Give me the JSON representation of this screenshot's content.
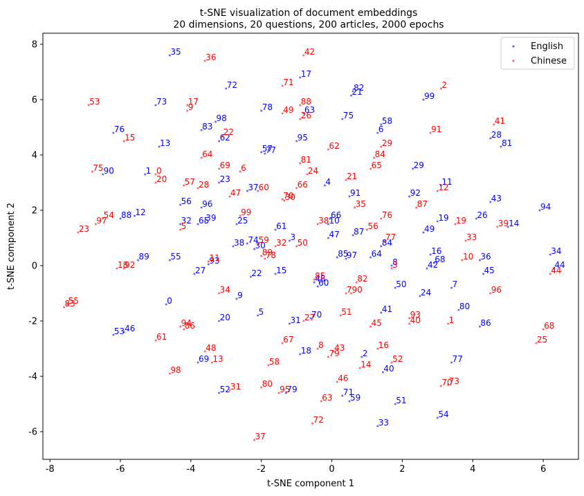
{
  "chart_data": {
    "type": "scatter",
    "title": "t-SNE visualization of document embeddings",
    "subtitle": "20 dimensions, 20 questions, 200 articles, 2000 epochs",
    "xlabel": "t-SNE component 1",
    "ylabel": "t-SNE component 2",
    "xlim": [
      -8.2,
      7.0
    ],
    "ylim": [
      -7.0,
      8.4
    ],
    "xticks": [
      -8,
      -6,
      -4,
      -2,
      0,
      2,
      4,
      6
    ],
    "yticks": [
      -6,
      -4,
      -2,
      0,
      2,
      4,
      6,
      8
    ],
    "grid": false,
    "legend_position": "top-right",
    "series": [
      {
        "name": "English",
        "color": "#0000ff",
        "points": [
          {
            "label": "35",
            "x": -4.6,
            "y": 7.6
          },
          {
            "label": "72",
            "x": -3.0,
            "y": 6.4
          },
          {
            "label": "17",
            "x": -0.9,
            "y": 6.8
          },
          {
            "label": "82",
            "x": 0.6,
            "y": 6.3
          },
          {
            "label": "21",
            "x": 0.55,
            "y": 6.15
          },
          {
            "label": "99",
            "x": 2.6,
            "y": 6.0
          },
          {
            "label": "73",
            "x": -5.0,
            "y": 5.8
          },
          {
            "label": "78",
            "x": -2.0,
            "y": 5.6
          },
          {
            "label": "63",
            "x": -0.8,
            "y": 5.5
          },
          {
            "label": "75",
            "x": 0.3,
            "y": 5.3
          },
          {
            "label": "58",
            "x": 1.4,
            "y": 5.1
          },
          {
            "label": "6",
            "x": 1.3,
            "y": 4.8
          },
          {
            "label": "98",
            "x": -3.3,
            "y": 5.2
          },
          {
            "label": "83",
            "x": -3.7,
            "y": 4.9
          },
          {
            "label": "76",
            "x": -6.2,
            "y": 4.8
          },
          {
            "label": "62",
            "x": -3.2,
            "y": 4.5
          },
          {
            "label": "95",
            "x": -1.0,
            "y": 4.5
          },
          {
            "label": "28",
            "x": 4.5,
            "y": 4.6
          },
          {
            "label": "81",
            "x": 4.8,
            "y": 4.3
          },
          {
            "label": "13",
            "x": -4.9,
            "y": 4.3
          },
          {
            "label": "57",
            "x": -2.0,
            "y": 4.1
          },
          {
            "label": "77",
            "x": -1.9,
            "y": 4.05
          },
          {
            "label": "29",
            "x": 2.3,
            "y": 3.5
          },
          {
            "label": "1",
            "x": -5.3,
            "y": 3.3
          },
          {
            "label": "90",
            "x": -6.5,
            "y": 3.3
          },
          {
            "label": "23",
            "x": -3.2,
            "y": 3.0
          },
          {
            "label": "37",
            "x": -2.4,
            "y": 2.7
          },
          {
            "label": "4",
            "x": -0.2,
            "y": 2.9
          },
          {
            "label": "91",
            "x": 0.5,
            "y": 2.5
          },
          {
            "label": "92",
            "x": 2.2,
            "y": 2.5
          },
          {
            "label": "11",
            "x": 3.1,
            "y": 2.9
          },
          {
            "label": "43",
            "x": 4.5,
            "y": 2.3
          },
          {
            "label": "94",
            "x": 5.9,
            "y": 2.0
          },
          {
            "label": "56",
            "x": -4.3,
            "y": 2.2
          },
          {
            "label": "96",
            "x": -3.7,
            "y": 2.1
          },
          {
            "label": "88",
            "x": -6.0,
            "y": 1.7
          },
          {
            "label": "12",
            "x": -5.6,
            "y": 1.8
          },
          {
            "label": "39",
            "x": -3.6,
            "y": 1.6
          },
          {
            "label": "32",
            "x": -4.3,
            "y": 1.5
          },
          {
            "label": "65",
            "x": -3.8,
            "y": 1.5
          },
          {
            "label": "25",
            "x": -2.7,
            "y": 1.5
          },
          {
            "label": "66",
            "x": -0.05,
            "y": 1.7
          },
          {
            "label": "10",
            "x": -0.1,
            "y": 1.5
          },
          {
            "label": "26",
            "x": 4.1,
            "y": 1.7
          },
          {
            "label": "19",
            "x": 3.0,
            "y": 1.6
          },
          {
            "label": "14",
            "x": 5.0,
            "y": 1.4
          },
          {
            "label": "61",
            "x": -1.6,
            "y": 1.3
          },
          {
            "label": "49",
            "x": 2.6,
            "y": 1.2
          },
          {
            "label": "87",
            "x": 0.6,
            "y": 1.1
          },
          {
            "label": "47",
            "x": -0.1,
            "y": 1.0
          },
          {
            "label": "3",
            "x": -1.2,
            "y": 0.9
          },
          {
            "label": "74",
            "x": -2.4,
            "y": 0.8
          },
          {
            "label": "38",
            "x": -2.8,
            "y": 0.7
          },
          {
            "label": "30",
            "x": -2.2,
            "y": 0.6
          },
          {
            "label": "84",
            "x": 1.4,
            "y": 0.7
          },
          {
            "label": "16",
            "x": 2.8,
            "y": 0.4
          },
          {
            "label": "34",
            "x": 6.2,
            "y": 0.4
          },
          {
            "label": "36",
            "x": 4.2,
            "y": 0.2
          },
          {
            "label": "68",
            "x": 2.9,
            "y": 0.1
          },
          {
            "label": "85",
            "x": 0.15,
            "y": 0.3
          },
          {
            "label": "97",
            "x": 0.4,
            "y": 0.25
          },
          {
            "label": "64",
            "x": 1.1,
            "y": 0.3
          },
          {
            "label": "89",
            "x": -5.5,
            "y": 0.2
          },
          {
            "label": "55",
            "x": -4.6,
            "y": 0.2
          },
          {
            "label": "93",
            "x": -3.5,
            "y": 0.05
          },
          {
            "label": "8",
            "x": 1.7,
            "y": 0.0
          },
          {
            "label": "42",
            "x": 2.7,
            "y": -0.1
          },
          {
            "label": "44",
            "x": 6.3,
            "y": -0.1
          },
          {
            "label": "45",
            "x": 4.3,
            "y": -0.3
          },
          {
            "label": "27",
            "x": -3.9,
            "y": -0.3
          },
          {
            "label": "15",
            "x": -1.6,
            "y": -0.3
          },
          {
            "label": "22",
            "x": -2.3,
            "y": -0.4
          },
          {
            "label": "48",
            "x": -0.5,
            "y": -0.6
          },
          {
            "label": "60",
            "x": -0.4,
            "y": -0.75
          },
          {
            "label": "50",
            "x": 1.8,
            "y": -0.8
          },
          {
            "label": "7",
            "x": 3.4,
            "y": -0.8
          },
          {
            "label": "24",
            "x": 2.5,
            "y": -1.1
          },
          {
            "label": "9",
            "x": -2.7,
            "y": -1.2
          },
          {
            "label": "0",
            "x": -4.7,
            "y": -1.4
          },
          {
            "label": "41",
            "x": 1.4,
            "y": -1.7
          },
          {
            "label": "80",
            "x": 3.6,
            "y": -1.6
          },
          {
            "label": "5",
            "x": -2.1,
            "y": -1.8
          },
          {
            "label": "70",
            "x": -0.6,
            "y": -1.9
          },
          {
            "label": "20",
            "x": -3.2,
            "y": -2.0
          },
          {
            "label": "31",
            "x": -1.2,
            "y": -2.1
          },
          {
            "label": "86",
            "x": 4.2,
            "y": -2.2
          },
          {
            "label": "46",
            "x": -5.9,
            "y": -2.4
          },
          {
            "label": "53",
            "x": -6.2,
            "y": -2.5
          },
          {
            "label": "18",
            "x": -0.9,
            "y": -3.2
          },
          {
            "label": "2",
            "x": 0.85,
            "y": -3.3
          },
          {
            "label": "77",
            "x": 3.4,
            "y": -3.5
          },
          {
            "label": "69",
            "x": -3.8,
            "y": -3.5
          },
          {
            "label": "40",
            "x": 1.45,
            "y": -3.85
          },
          {
            "label": "52",
            "x": -3.2,
            "y": -4.6
          },
          {
            "label": "79",
            "x": -1.3,
            "y": -4.6
          },
          {
            "label": "71",
            "x": 0.3,
            "y": -4.7
          },
          {
            "label": "59",
            "x": 0.5,
            "y": -4.9
          },
          {
            "label": "51",
            "x": 1.8,
            "y": -5.0
          },
          {
            "label": "54",
            "x": 3.0,
            "y": -5.5
          },
          {
            "label": "33",
            "x": 1.3,
            "y": -5.8
          }
        ]
      },
      {
        "name": "Chinese",
        "color": "#ff0000",
        "points": [
          {
            "label": "42",
            "x": -0.8,
            "y": 7.6
          },
          {
            "label": "36",
            "x": -3.6,
            "y": 7.4
          },
          {
            "label": "71",
            "x": -1.4,
            "y": 6.5
          },
          {
            "label": "2",
            "x": 3.1,
            "y": 6.4
          },
          {
            "label": "53",
            "x": -6.9,
            "y": 5.8
          },
          {
            "label": "17",
            "x": -4.1,
            "y": 5.8
          },
          {
            "label": "9",
            "x": -4.1,
            "y": 5.6
          },
          {
            "label": "88",
            "x": -0.9,
            "y": 5.8
          },
          {
            "label": "49",
            "x": -1.4,
            "y": 5.5
          },
          {
            "label": "26",
            "x": -0.9,
            "y": 5.3
          },
          {
            "label": "41",
            "x": 4.6,
            "y": 5.1
          },
          {
            "label": "91",
            "x": 2.8,
            "y": 4.8
          },
          {
            "label": "15",
            "x": -5.9,
            "y": 4.5
          },
          {
            "label": "22",
            "x": -3.1,
            "y": 4.7
          },
          {
            "label": "29",
            "x": 1.4,
            "y": 4.3
          },
          {
            "label": "62",
            "x": -0.1,
            "y": 4.2
          },
          {
            "label": "64",
            "x": -3.7,
            "y": 3.9
          },
          {
            "label": "84",
            "x": 1.2,
            "y": 3.9
          },
          {
            "label": "81",
            "x": -0.9,
            "y": 3.7
          },
          {
            "label": "65",
            "x": 1.1,
            "y": 3.5
          },
          {
            "label": "69",
            "x": -3.2,
            "y": 3.5
          },
          {
            "label": "24",
            "x": -0.7,
            "y": 3.3
          },
          {
            "label": "6",
            "x": -2.6,
            "y": 3.4
          },
          {
            "label": "75",
            "x": -6.8,
            "y": 3.4
          },
          {
            "label": "0",
            "x": -5.0,
            "y": 3.3
          },
          {
            "label": "21",
            "x": 0.4,
            "y": 3.1
          },
          {
            "label": "20",
            "x": -5.0,
            "y": 3.0
          },
          {
            "label": "57",
            "x": -4.2,
            "y": 2.9
          },
          {
            "label": "28",
            "x": -3.8,
            "y": 2.8
          },
          {
            "label": "66",
            "x": -1.0,
            "y": 2.8
          },
          {
            "label": "47",
            "x": -2.9,
            "y": 2.5
          },
          {
            "label": "60",
            "x": -2.1,
            "y": 2.7
          },
          {
            "label": "12",
            "x": 3.0,
            "y": 2.7
          },
          {
            "label": "70",
            "x": -1.4,
            "y": 2.4
          },
          {
            "label": "30",
            "x": -1.35,
            "y": 2.35
          },
          {
            "label": "35",
            "x": 0.65,
            "y": 2.1
          },
          {
            "label": "87",
            "x": 2.4,
            "y": 2.1
          },
          {
            "label": "99",
            "x": -2.6,
            "y": 1.8
          },
          {
            "label": "76",
            "x": 1.4,
            "y": 1.7
          },
          {
            "label": "54",
            "x": -6.5,
            "y": 1.7
          },
          {
            "label": "97",
            "x": -6.7,
            "y": 1.5
          },
          {
            "label": "38",
            "x": -0.4,
            "y": 1.5
          },
          {
            "label": "19",
            "x": 3.5,
            "y": 1.5
          },
          {
            "label": "39",
            "x": 4.7,
            "y": 1.4
          },
          {
            "label": "56",
            "x": 1.0,
            "y": 1.3
          },
          {
            "label": "5",
            "x": -4.3,
            "y": 1.3
          },
          {
            "label": "23",
            "x": -7.2,
            "y": 1.2
          },
          {
            "label": "33",
            "x": 3.8,
            "y": 0.9
          },
          {
            "label": "77",
            "x": 1.5,
            "y": 0.9
          },
          {
            "label": "59",
            "x": -2.1,
            "y": 0.8
          },
          {
            "label": "32",
            "x": -1.6,
            "y": 0.7
          },
          {
            "label": "50",
            "x": -1.0,
            "y": 0.7
          },
          {
            "label": "89",
            "x": -2.0,
            "y": 0.35
          },
          {
            "label": "78",
            "x": -1.9,
            "y": 0.25
          },
          {
            "label": "10",
            "x": 3.7,
            "y": 0.2
          },
          {
            "label": "11",
            "x": -3.5,
            "y": 0.15
          },
          {
            "label": "18",
            "x": -6.1,
            "y": -0.1
          },
          {
            "label": "92",
            "x": -5.9,
            "y": -0.1
          },
          {
            "label": "3",
            "x": 1.7,
            "y": -0.1
          },
          {
            "label": "44",
            "x": 6.2,
            "y": -0.3
          },
          {
            "label": "85",
            "x": -0.5,
            "y": -0.5
          },
          {
            "label": "82",
            "x": 0.7,
            "y": -0.6
          },
          {
            "label": "34",
            "x": -3.2,
            "y": -1.0
          },
          {
            "label": "7",
            "x": 0.4,
            "y": -1.0
          },
          {
            "label": "90",
            "x": 0.55,
            "y": -1.0
          },
          {
            "label": "96",
            "x": 4.5,
            "y": -1.0
          },
          {
            "label": "55",
            "x": -7.5,
            "y": -1.4
          },
          {
            "label": "83",
            "x": -7.6,
            "y": -1.5
          },
          {
            "label": "51",
            "x": 0.25,
            "y": -1.8
          },
          {
            "label": "93",
            "x": 2.2,
            "y": -1.9
          },
          {
            "label": "27",
            "x": -0.8,
            "y": -2.0
          },
          {
            "label": "40",
            "x": 2.2,
            "y": -2.1
          },
          {
            "label": "1",
            "x": 3.3,
            "y": -2.1
          },
          {
            "label": "45",
            "x": 1.1,
            "y": -2.2
          },
          {
            "label": "94",
            "x": -4.3,
            "y": -2.2
          },
          {
            "label": "86",
            "x": -4.2,
            "y": -2.3
          },
          {
            "label": "68",
            "x": 6.0,
            "y": -2.3
          },
          {
            "label": "61",
            "x": -5.0,
            "y": -2.7
          },
          {
            "label": "67",
            "x": -1.4,
            "y": -2.8
          },
          {
            "label": "25",
            "x": 5.8,
            "y": -2.8
          },
          {
            "label": "8",
            "x": -0.4,
            "y": -3.0
          },
          {
            "label": "16",
            "x": 1.3,
            "y": -3.0
          },
          {
            "label": "43",
            "x": 0.05,
            "y": -3.1
          },
          {
            "label": "48",
            "x": -3.6,
            "y": -3.1
          },
          {
            "label": "79",
            "x": -0.1,
            "y": -3.3
          },
          {
            "label": "13",
            "x": -3.4,
            "y": -3.5
          },
          {
            "label": "52",
            "x": 1.7,
            "y": -3.5
          },
          {
            "label": "58",
            "x": -1.8,
            "y": -3.6
          },
          {
            "label": "14",
            "x": 0.8,
            "y": -3.7
          },
          {
            "label": "98",
            "x": -4.6,
            "y": -3.9
          },
          {
            "label": "46",
            "x": 0.15,
            "y": -4.2
          },
          {
            "label": "73",
            "x": 3.3,
            "y": -4.3
          },
          {
            "label": "70",
            "x": 3.1,
            "y": -4.35
          },
          {
            "label": "31",
            "x": -2.9,
            "y": -4.5
          },
          {
            "label": "80",
            "x": -2.0,
            "y": -4.4
          },
          {
            "label": "95",
            "x": -1.5,
            "y": -4.6
          },
          {
            "label": "63",
            "x": -0.3,
            "y": -4.9
          },
          {
            "label": "72",
            "x": -0.55,
            "y": -5.7
          },
          {
            "label": "37",
            "x": -2.2,
            "y": -6.3
          }
        ]
      }
    ]
  }
}
